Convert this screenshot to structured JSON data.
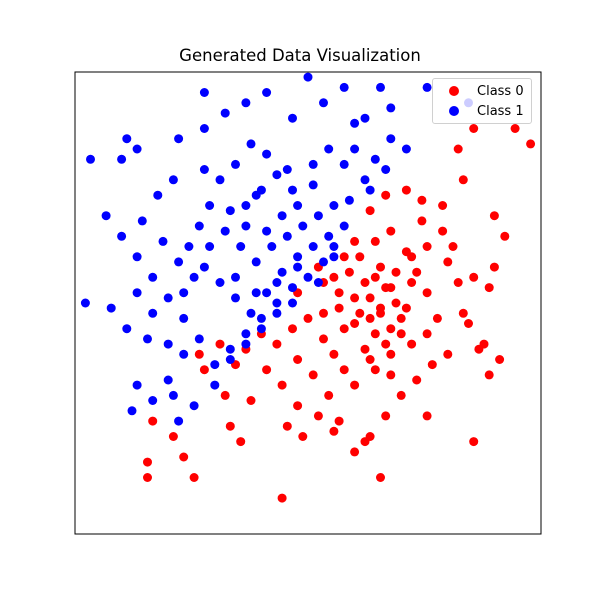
{
  "chart_data": {
    "type": "scatter",
    "title": "Generated Data Visualization",
    "xlabel": "",
    "ylabel": "",
    "xlim": [
      -4.5,
      4.5
    ],
    "ylim": [
      -4.5,
      4.5
    ],
    "grid": false,
    "ticks_visible": false,
    "legend_position": "top-right",
    "series": [
      {
        "name": "Class 0",
        "color": "#ff0000",
        "points": [
          [
            1.2,
            0.1
          ],
          [
            1.4,
            -0.2
          ],
          [
            1.5,
            0.3
          ],
          [
            1.6,
            -0.5
          ],
          [
            1.3,
            -0.6
          ],
          [
            1.1,
            -0.9
          ],
          [
            0.9,
            -0.4
          ],
          [
            1.7,
            0.0
          ],
          [
            1.8,
            -0.3
          ],
          [
            2.0,
            0.4
          ],
          [
            0.6,
            -0.1
          ],
          [
            0.8,
            0.6
          ],
          [
            1.0,
            0.9
          ],
          [
            1.3,
            1.2
          ],
          [
            1.6,
            1.4
          ],
          [
            1.9,
            1.0
          ],
          [
            2.1,
            0.6
          ],
          [
            2.3,
            0.2
          ],
          [
            2.5,
            -0.3
          ],
          [
            2.7,
            0.8
          ],
          [
            2.2,
            1.6
          ],
          [
            2.6,
            1.4
          ],
          [
            2.9,
            0.4
          ],
          [
            3.2,
            0.5
          ],
          [
            3.5,
            0.3
          ],
          [
            3.0,
            -0.2
          ],
          [
            3.4,
            -0.8
          ],
          [
            3.7,
            -1.1
          ],
          [
            3.6,
            0.7
          ],
          [
            3.8,
            1.3
          ],
          [
            3.6,
            1.7
          ],
          [
            2.7,
            -1.0
          ],
          [
            2.4,
            -1.2
          ],
          [
            2.1,
            -1.5
          ],
          [
            1.8,
            -1.8
          ],
          [
            1.5,
            -2.2
          ],
          [
            1.2,
            -2.6
          ],
          [
            0.9,
            -2.9
          ],
          [
            0.5,
            -2.5
          ],
          [
            0.2,
            -2.2
          ],
          [
            -0.2,
            -2.0
          ],
          [
            -0.5,
            -1.6
          ],
          [
            -0.8,
            -1.3
          ],
          [
            -1.1,
            -1.9
          ],
          [
            -1.4,
            -1.2
          ],
          [
            -1.5,
            -2.4
          ],
          [
            -1.6,
            -1.8
          ],
          [
            -1.2,
            -0.9
          ],
          [
            -0.9,
            -0.6
          ],
          [
            -0.6,
            -0.8
          ],
          [
            -0.3,
            -0.5
          ],
          [
            0.0,
            -0.3
          ],
          [
            0.3,
            -0.7
          ],
          [
            0.5,
            -1.0
          ],
          [
            0.7,
            -1.3
          ],
          [
            0.4,
            -1.8
          ],
          [
            0.1,
            -1.4
          ],
          [
            -0.2,
            -1.1
          ],
          [
            0.9,
            -1.6
          ],
          [
            1.3,
            -1.3
          ],
          [
            1.6,
            -1.0
          ],
          [
            2.0,
            -0.8
          ],
          [
            2.3,
            -0.6
          ],
          [
            0.6,
            0.2
          ],
          [
            0.9,
            0.1
          ],
          [
            1.2,
            -0.3
          ],
          [
            1.5,
            -0.8
          ],
          [
            1.8,
            -0.6
          ],
          [
            0.3,
            0.4
          ],
          [
            0.7,
            0.9
          ],
          [
            1.1,
            0.4
          ],
          [
            1.4,
            0.7
          ],
          [
            1.7,
            0.6
          ],
          [
            2.0,
            0.9
          ],
          [
            2.3,
            1.1
          ],
          [
            2.6,
            1.9
          ],
          [
            2.8,
            1.1
          ],
          [
            3.1,
            -0.4
          ],
          [
            3.3,
            -0.9
          ],
          [
            3.5,
            -1.4
          ],
          [
            -2.6,
            -2.6
          ],
          [
            -2.4,
            -3.0
          ],
          [
            -2.2,
            -3.4
          ],
          [
            -3.1,
            -3.1
          ],
          [
            -3.1,
            -3.4
          ],
          [
            -0.5,
            -3.8
          ],
          [
            1.1,
            -2.7
          ],
          [
            2.3,
            -2.2
          ],
          [
            3.2,
            -2.7
          ],
          [
            1.4,
            -3.4
          ],
          [
            0.6,
            -2.3
          ],
          [
            -0.1,
            -2.6
          ],
          [
            -0.4,
            -2.4
          ],
          [
            -1.3,
            -2.7
          ],
          [
            -3.0,
            -2.3
          ],
          [
            -2.0,
            -1.3
          ],
          [
            -2.1,
            -1.0
          ],
          [
            -1.7,
            -0.8
          ],
          [
            0.2,
            0.7
          ],
          [
            0.5,
            0.5
          ],
          [
            0.9,
            1.2
          ],
          [
            1.2,
            1.8
          ],
          [
            1.5,
            2.1
          ],
          [
            1.9,
            2.2
          ],
          [
            2.2,
            2.0
          ],
          [
            3.0,
            2.4
          ],
          [
            2.9,
            3.0
          ],
          [
            3.2,
            3.4
          ],
          [
            4.0,
            3.4
          ],
          [
            4.3,
            3.1
          ],
          [
            1.4,
            -0.1
          ],
          [
            1.0,
            -0.2
          ],
          [
            1.3,
            0.5
          ],
          [
            1.6,
            0.3
          ],
          [
            1.9,
            -0.1
          ],
          [
            0.7,
            -0.5
          ],
          [
            1.2,
            -1.1
          ],
          [
            1.6,
            -1.4
          ],
          [
            0.3,
            -0.2
          ],
          [
            -0.2,
            0.2
          ]
        ]
      },
      {
        "name": "Class 1",
        "color": "#0000ff",
        "points": [
          [
            -1.2,
            1.5
          ],
          [
            -1.5,
            1.8
          ],
          [
            -1.0,
            2.1
          ],
          [
            -0.8,
            1.4
          ],
          [
            -0.5,
            1.7
          ],
          [
            -0.2,
            1.9
          ],
          [
            0.1,
            2.3
          ],
          [
            -0.4,
            2.6
          ],
          [
            -0.8,
            2.9
          ],
          [
            -1.1,
            3.1
          ],
          [
            -1.4,
            2.7
          ],
          [
            -1.7,
            2.4
          ],
          [
            -1.9,
            1.9
          ],
          [
            -2.1,
            1.5
          ],
          [
            -2.3,
            1.1
          ],
          [
            -2.0,
            0.7
          ],
          [
            -1.7,
            0.4
          ],
          [
            -1.4,
            0.1
          ],
          [
            -1.1,
            -0.2
          ],
          [
            -0.8,
            0.2
          ],
          [
            -0.5,
            0.6
          ],
          [
            -0.2,
            0.9
          ],
          [
            0.1,
            1.1
          ],
          [
            0.4,
            1.3
          ],
          [
            0.3,
            0.8
          ],
          [
            0.0,
            0.5
          ],
          [
            -0.3,
            0.3
          ],
          [
            -0.6,
            0.0
          ],
          [
            -0.9,
            -0.3
          ],
          [
            -1.2,
            -0.6
          ],
          [
            -1.5,
            -0.9
          ],
          [
            -1.8,
            -1.2
          ],
          [
            -2.1,
            -0.7
          ],
          [
            -2.4,
            -0.3
          ],
          [
            -2.7,
            0.1
          ],
          [
            -3.0,
            0.5
          ],
          [
            -3.3,
            0.9
          ],
          [
            -3.6,
            1.3
          ],
          [
            -3.9,
            1.7
          ],
          [
            -4.3,
            0.0
          ],
          [
            -4.2,
            2.8
          ],
          [
            -3.6,
            2.8
          ],
          [
            -3.5,
            3.2
          ],
          [
            -3.3,
            3.0
          ],
          [
            -2.5,
            3.2
          ],
          [
            -2.0,
            3.4
          ],
          [
            -1.6,
            3.7
          ],
          [
            -1.2,
            3.9
          ],
          [
            -2.0,
            4.1
          ],
          [
            -0.8,
            4.1
          ],
          [
            -0.3,
            3.6
          ],
          [
            0.3,
            3.9
          ],
          [
            0.9,
            3.5
          ],
          [
            1.1,
            3.6
          ],
          [
            1.6,
            3.8
          ],
          [
            1.4,
            4.2
          ],
          [
            0.7,
            4.2
          ],
          [
            0.0,
            4.4
          ],
          [
            2.3,
            4.2
          ],
          [
            3.1,
            3.9
          ],
          [
            -2.0,
            2.6
          ],
          [
            -2.6,
            2.4
          ],
          [
            -2.9,
            2.1
          ],
          [
            -3.2,
            1.6
          ],
          [
            -2.8,
            1.2
          ],
          [
            -2.5,
            0.8
          ],
          [
            -2.2,
            0.5
          ],
          [
            -1.9,
            1.1
          ],
          [
            -1.6,
            1.4
          ],
          [
            -1.3,
            1.1
          ],
          [
            -1.0,
            0.8
          ],
          [
            -0.7,
            1.1
          ],
          [
            -0.4,
            1.3
          ],
          [
            -0.1,
            1.5
          ],
          [
            0.2,
            1.7
          ],
          [
            0.5,
            1.9
          ],
          [
            0.7,
            1.5
          ],
          [
            0.5,
            1.1
          ],
          [
            0.8,
            2.0
          ],
          [
            1.1,
            2.4
          ],
          [
            1.3,
            2.8
          ],
          [
            1.6,
            3.2
          ],
          [
            1.9,
            3.0
          ],
          [
            1.5,
            2.6
          ],
          [
            1.2,
            2.2
          ],
          [
            -0.3,
            2.2
          ],
          [
            -0.6,
            2.5
          ],
          [
            -0.9,
            2.2
          ],
          [
            -1.2,
            1.9
          ],
          [
            0.1,
            2.7
          ],
          [
            0.4,
            3.0
          ],
          [
            0.7,
            2.7
          ],
          [
            0.9,
            3.0
          ],
          [
            -2.4,
            -1.0
          ],
          [
            -2.7,
            -1.5
          ],
          [
            -3.0,
            -1.9
          ],
          [
            -2.6,
            -1.8
          ],
          [
            -3.3,
            -1.6
          ],
          [
            -3.4,
            -2.1
          ],
          [
            -2.5,
            -2.3
          ],
          [
            -2.2,
            -2.0
          ],
          [
            -1.8,
            -1.6
          ],
          [
            -1.5,
            -1.1
          ],
          [
            -1.2,
            -0.8
          ],
          [
            -0.9,
            -0.5
          ],
          [
            -0.6,
            -0.2
          ],
          [
            -0.3,
            0.0
          ],
          [
            -2.7,
            -0.8
          ],
          [
            -3.1,
            -0.7
          ],
          [
            -3.5,
            -0.5
          ],
          [
            -3.8,
            -0.1
          ],
          [
            -3.3,
            0.2
          ],
          [
            -3.0,
            -0.2
          ],
          [
            -2.4,
            0.2
          ],
          [
            -1.4,
            0.5
          ],
          [
            -1.0,
            0.2
          ],
          [
            -0.6,
            0.4
          ],
          [
            -0.2,
            0.7
          ],
          [
            0.2,
            0.4
          ],
          [
            0.5,
            0.9
          ]
        ]
      }
    ]
  }
}
